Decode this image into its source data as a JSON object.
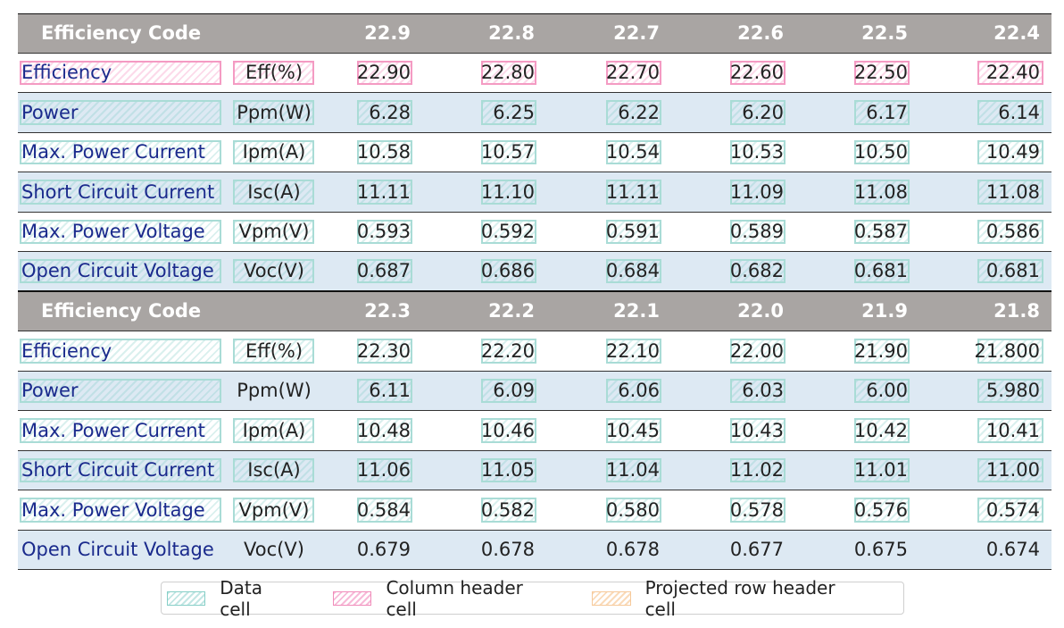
{
  "sections": [
    {
      "header": {
        "label": "Efficiency Code",
        "codes": [
          "22.9",
          "22.8",
          "22.7",
          "22.6",
          "22.5",
          "22.4"
        ]
      },
      "rows": [
        {
          "name": "Efficiency",
          "unit": "Eff(%)",
          "values": [
            "22.90",
            "22.80",
            "22.70",
            "22.60",
            "22.50",
            "22.40"
          ]
        },
        {
          "name": "Power",
          "unit": "Ppm(W)",
          "values": [
            "6.28",
            "6.25",
            "6.22",
            "6.20",
            "6.17",
            "6.14"
          ]
        },
        {
          "name": "Max. Power Current",
          "unit": "Ipm(A)",
          "values": [
            "10.58",
            "10.57",
            "10.54",
            "10.53",
            "10.50",
            "10.49"
          ]
        },
        {
          "name": "Short Circuit Current",
          "unit": "Isc(A)",
          "values": [
            "11.11",
            "11.10",
            "11.11",
            "11.09",
            "11.08",
            "11.08"
          ]
        },
        {
          "name": "Max. Power Voltage",
          "unit": "Vpm(V)",
          "values": [
            "0.593",
            "0.592",
            "0.591",
            "0.589",
            "0.587",
            "0.586"
          ]
        },
        {
          "name": "Open Circuit Voltage",
          "unit": "Voc(V)",
          "values": [
            "0.687",
            "0.686",
            "0.684",
            "0.682",
            "0.681",
            "0.681"
          ]
        }
      ]
    },
    {
      "header": {
        "label": "Efficiency Code",
        "codes": [
          "22.3",
          "22.2",
          "22.1",
          "22.0",
          "21.9",
          "21.8"
        ]
      },
      "rows": [
        {
          "name": "Efficiency",
          "unit": "Eff(%)",
          "values": [
            "22.30",
            "22.20",
            "22.10",
            "22.00",
            "21.90",
            "21.800"
          ]
        },
        {
          "name": "Power",
          "unit": "Ppm(W)",
          "values": [
            "6.11",
            "6.09",
            "6.06",
            "6.03",
            "6.00",
            "5.980"
          ]
        },
        {
          "name": "Max. Power Current",
          "unit": "Ipm(A)",
          "values": [
            "10.48",
            "10.46",
            "10.45",
            "10.43",
            "10.42",
            "10.41"
          ]
        },
        {
          "name": "Short Circuit Current",
          "unit": "Isc(A)",
          "values": [
            "11.06",
            "11.05",
            "11.04",
            "11.02",
            "11.01",
            "11.00"
          ]
        },
        {
          "name": "Max. Power Voltage",
          "unit": "Vpm(V)",
          "values": [
            "0.584",
            "0.582",
            "0.580",
            "0.578",
            "0.576",
            "0.574"
          ]
        },
        {
          "name": "Open Circuit Voltage",
          "unit": "Voc(V)",
          "values": [
            "0.679",
            "0.678",
            "0.678",
            "0.677",
            "0.675",
            "0.674"
          ]
        }
      ]
    }
  ],
  "legend": {
    "data_cell": "Data cell",
    "column_header_cell": "Column header cell",
    "projected_row_header_cell": "Projected row header cell"
  },
  "colors": {
    "header_bg": "#a9a5a3",
    "row_shade": "#dde9f3",
    "row_name_text": "#1a2a8c",
    "data_box": "#a9dcd6",
    "column_header_box": "#f49bc3",
    "projected_row_header_box": "#f6c99a"
  }
}
